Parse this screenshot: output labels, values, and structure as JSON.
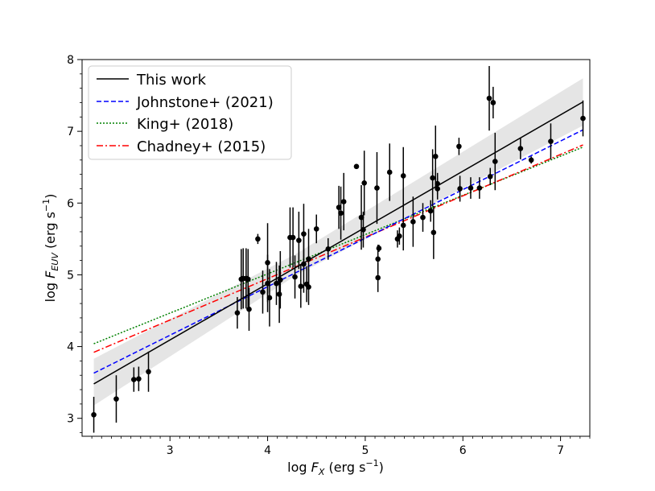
{
  "chart_data": {
    "type": "scatter",
    "title": "",
    "xlabel": {
      "prefix": "log ",
      "var": "F",
      "sub": "X",
      "unit_pre": " (erg s",
      "unit_sup": "−1",
      "unit_post": ")"
    },
    "ylabel": {
      "prefix": "log ",
      "var": "F",
      "sub": "EUV",
      "unit_pre": " (erg s",
      "unit_sup": "−1",
      "unit_post": ")"
    },
    "xlim": [
      2.1,
      7.3
    ],
    "ylim": [
      2.75,
      8.0
    ],
    "xticks": [
      3,
      4,
      5,
      6,
      7
    ],
    "yticks": [
      3,
      4,
      5,
      6,
      7,
      8
    ],
    "grid": false,
    "legend": {
      "position": "top-left",
      "entries": [
        {
          "label": "This work",
          "color": "#000000",
          "style": "solid"
        },
        {
          "label": "Johnstone+ (2021)",
          "color": "#0000ff",
          "style": "dashed"
        },
        {
          "label": "King+ (2018)",
          "color": "#008000",
          "style": "dotted"
        },
        {
          "label": "Chadney+ (2015)",
          "color": "#ff0000",
          "style": "dashdot"
        }
      ]
    },
    "band": {
      "color": "#d3d3d3",
      "lower": [
        [
          2.22,
          3.18
        ],
        [
          4.3,
          5.0
        ],
        [
          7.23,
          7.08
        ]
      ],
      "upper": [
        [
          2.22,
          3.83
        ],
        [
          4.3,
          5.3
        ],
        [
          7.23,
          7.74
        ]
      ]
    },
    "series": [
      {
        "name": "This work",
        "points": [
          [
            2.22,
            3.48
          ],
          [
            7.23,
            7.41
          ]
        ]
      },
      {
        "name": "Johnstone+ (2021)",
        "points": [
          [
            2.22,
            3.63
          ],
          [
            7.23,
            7.02
          ]
        ]
      },
      {
        "name": "King+ (2018)",
        "points": [
          [
            2.22,
            4.04
          ],
          [
            7.23,
            6.78
          ]
        ]
      },
      {
        "name": "Chadney+ (2015)",
        "points": [
          [
            2.22,
            3.92
          ],
          [
            7.23,
            6.81
          ]
        ]
      }
    ],
    "observations": [
      [
        2.22,
        3.05,
        0.25
      ],
      [
        2.45,
        3.27,
        0.33
      ],
      [
        2.63,
        3.54,
        0.17
      ],
      [
        2.68,
        3.55,
        0.17
      ],
      [
        2.78,
        3.65,
        0.28
      ],
      [
        3.69,
        4.47,
        0.22
      ],
      [
        3.73,
        4.94,
        0.42
      ],
      [
        3.75,
        4.95,
        0.42
      ],
      [
        3.78,
        4.95,
        0.42
      ],
      [
        3.8,
        4.94,
        0.42
      ],
      [
        3.81,
        4.52,
        0.3
      ],
      [
        3.9,
        5.5,
        0.07
      ],
      [
        3.95,
        4.76,
        0.3
      ],
      [
        4.0,
        4.88,
        0.4
      ],
      [
        4.0,
        5.17,
        0.55
      ],
      [
        4.02,
        4.68,
        0.4
      ],
      [
        4.09,
        4.88,
        0.3
      ],
      [
        4.12,
        4.73,
        0.4
      ],
      [
        4.13,
        4.93,
        0.4
      ],
      [
        4.23,
        5.52,
        0.42
      ],
      [
        4.26,
        5.52,
        0.42
      ],
      [
        4.28,
        4.97,
        0.3
      ],
      [
        4.32,
        5.48,
        0.4
      ],
      [
        4.34,
        4.84,
        0.3
      ],
      [
        4.37,
        5.57,
        0.42
      ],
      [
        4.37,
        5.15,
        0.4
      ],
      [
        4.4,
        4.87,
        0.25
      ],
      [
        4.42,
        4.83,
        0.25
      ],
      [
        4.42,
        5.22,
        0.42
      ],
      [
        4.5,
        5.64,
        0.2
      ],
      [
        4.62,
        5.36,
        0.15
      ],
      [
        4.73,
        5.94,
        0.3
      ],
      [
        4.75,
        5.86,
        0.37
      ],
      [
        4.78,
        6.02,
        0.4
      ],
      [
        4.91,
        6.51,
        0.03
      ],
      [
        4.96,
        5.8,
        0.45
      ],
      [
        4.98,
        5.63,
        0.25
      ],
      [
        4.99,
        6.28,
        0.45
      ],
      [
        5.12,
        6.21,
        0.5
      ],
      [
        5.13,
        4.96,
        0.2
      ],
      [
        5.13,
        5.22,
        0.2
      ],
      [
        5.14,
        5.37,
        0.05
      ],
      [
        5.25,
        6.43,
        0.4
      ],
      [
        5.33,
        5.5,
        0.12
      ],
      [
        5.35,
        5.54,
        0.12
      ],
      [
        5.39,
        5.69,
        0.35
      ],
      [
        5.39,
        6.38,
        0.4
      ],
      [
        5.49,
        5.74,
        0.35
      ],
      [
        5.59,
        5.8,
        0.2
      ],
      [
        5.67,
        5.89,
        0.15
      ],
      [
        5.69,
        6.35,
        0.4
      ],
      [
        5.7,
        5.59,
        0.37
      ],
      [
        5.72,
        6.65,
        0.43
      ],
      [
        5.74,
        6.27,
        0.15
      ],
      [
        5.74,
        6.2,
        0.15
      ],
      [
        5.96,
        6.79,
        0.12
      ],
      [
        5.97,
        6.2,
        0.18
      ],
      [
        6.08,
        6.21,
        0.15
      ],
      [
        6.17,
        6.21,
        0.15
      ],
      [
        6.27,
        7.46,
        0.45
      ],
      [
        6.28,
        6.37,
        0.12
      ],
      [
        6.31,
        7.4,
        0.22
      ],
      [
        6.33,
        6.58,
        0.4
      ],
      [
        6.59,
        6.76,
        0.15
      ],
      [
        6.7,
        6.6,
        0.05
      ],
      [
        6.9,
        6.86,
        0.25
      ],
      [
        7.23,
        7.18,
        0.25
      ]
    ]
  }
}
